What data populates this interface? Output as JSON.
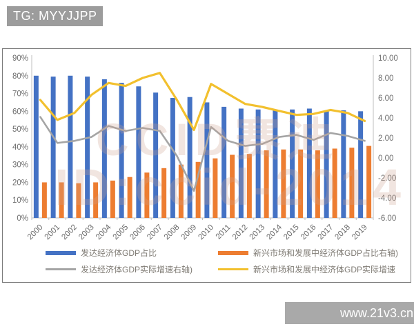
{
  "header": {
    "tag_label": "TG: MYYJJPP"
  },
  "footer": {
    "site_label": "www.21v3.cn"
  },
  "watermark": {
    "line1": "CCID赛迪",
    "line2": "ID:ccid-2014"
  },
  "colors": {
    "bar_developed": "#4472C4",
    "bar_emerging": "#ED7D31",
    "line_developed": "#A5A5A5",
    "line_emerging": "#F2C02E",
    "axis_line": "#bfbfbf",
    "tick_label": "#6e6e6e",
    "header_bg": "#9c9c9c",
    "footer_bg": "#a9a9a9"
  },
  "chart_data": {
    "type": "bar+line combo (dual axis)",
    "categories": [
      "2000",
      "2001",
      "2002",
      "2003",
      "2004",
      "2005",
      "2006",
      "2007",
      "2008",
      "2009",
      "2010",
      "2011",
      "2012",
      "2013",
      "2014",
      "2015",
      "2016",
      "2017",
      "2018",
      "2019"
    ],
    "left_axis": {
      "min": 0,
      "max": 90,
      "step": 10,
      "tick_labels": [
        "0%",
        "10%",
        "20%",
        "30%",
        "40%",
        "50%",
        "60%",
        "70%",
        "80%",
        "90%"
      ]
    },
    "right_axis": {
      "min": -6,
      "max": 10,
      "step": 2,
      "tick_labels": [
        "-6.00",
        "-4.00",
        "-2.00",
        "0.00",
        "2.00",
        "4.00",
        "6.00",
        "8.00",
        "10.00"
      ]
    },
    "grid": "off",
    "legend_position": "bottom, 2 columns",
    "series": [
      {
        "name": "发达经济体GDP占比",
        "type": "bar",
        "axis": "left",
        "color": "#4472C4",
        "values": [
          80,
          79.5,
          80,
          79.5,
          78,
          76,
          74,
          70.5,
          67.5,
          68,
          65,
          62.5,
          61.5,
          61,
          60.5,
          61,
          61.5,
          60.5,
          60.5,
          60
        ]
      },
      {
        "name": "新兴市场和发展中经济体GDP占比右轴)",
        "type": "bar",
        "axis": "left",
        "color": "#ED7D31",
        "values": [
          20,
          20,
          19.5,
          20,
          21,
          23,
          25.5,
          28,
          30,
          31.5,
          33.5,
          35.5,
          36,
          38,
          38.5,
          38.5,
          38,
          39,
          39.5,
          40.5
        ]
      },
      {
        "name": "发达经济体GDP实际增速右轴)",
        "type": "line",
        "axis": "right",
        "color": "#A5A5A5",
        "values": [
          4.1,
          1.5,
          1.7,
          2.1,
          3.2,
          2.7,
          3.0,
          2.7,
          0.2,
          -3.3,
          3.1,
          1.7,
          1.2,
          1.4,
          2.1,
          2.3,
          1.8,
          2.5,
          2.2,
          1.7
        ]
      },
      {
        "name": "新兴市场和发展中经济体GDP实际增速",
        "type": "line",
        "axis": "right",
        "color": "#F2C02E",
        "values": [
          5.8,
          3.8,
          4.5,
          6.3,
          7.5,
          7.2,
          8.0,
          8.5,
          5.8,
          2.8,
          7.4,
          6.4,
          5.4,
          5.1,
          4.7,
          4.3,
          4.4,
          4.8,
          4.5,
          3.7
        ]
      }
    ]
  }
}
